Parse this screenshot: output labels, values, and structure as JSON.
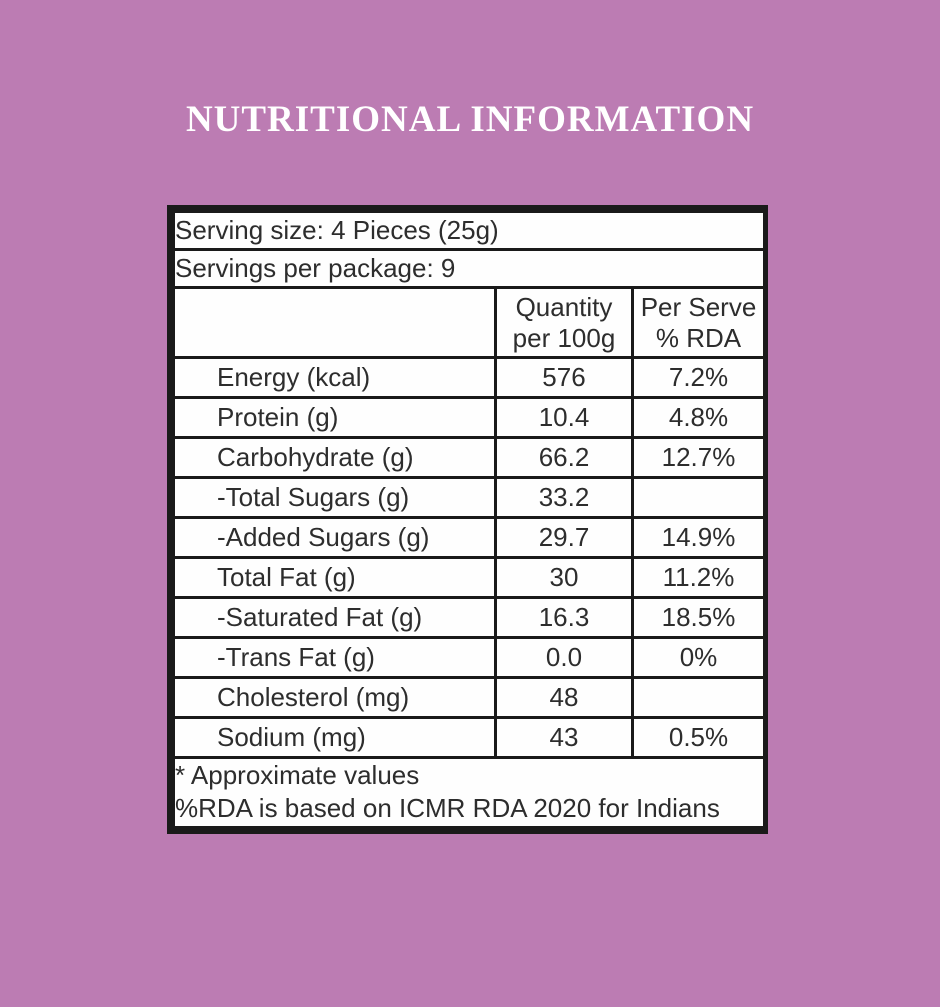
{
  "page": {
    "title": "NUTRITIONAL INFORMATION"
  },
  "colors": {
    "background": "#bc7cb3",
    "panel_background": "#fefefe",
    "border": "#1a1a1a",
    "text": "#2d2d2d",
    "title_text": "#ffffff"
  },
  "table": {
    "serving_size": "Serving size: 4 Pieces (25g)",
    "servings_per_package": "Servings per package: 9",
    "columns": {
      "quantity_line1": "Quantity",
      "quantity_line2": "per 100g",
      "per_serve_line1": "Per Serve",
      "per_serve_line2": "% RDA"
    },
    "rows": [
      {
        "label": "Energy (kcal)",
        "quantity": "576",
        "rda": "7.2%"
      },
      {
        "label": "Protein (g)",
        "quantity": "10.4",
        "rda": "4.8%"
      },
      {
        "label": "Carbohydrate (g)",
        "quantity": "66.2",
        "rda": "12.7%"
      },
      {
        "label": "-Total Sugars (g)",
        "quantity": "33.2",
        "rda": ""
      },
      {
        "label": "-Added Sugars (g)",
        "quantity": "29.7",
        "rda": "14.9%"
      },
      {
        "label": "Total Fat (g)",
        "quantity": "30",
        "rda": "11.2%"
      },
      {
        "label": "-Saturated Fat (g)",
        "quantity": "16.3",
        "rda": "18.5%"
      },
      {
        "label": "-Trans Fat (g)",
        "quantity": "0.0",
        "rda": "0%"
      },
      {
        "label": "Cholesterol (mg)",
        "quantity": "48",
        "rda": ""
      },
      {
        "label": "Sodium (mg)",
        "quantity": "43",
        "rda": "0.5%"
      }
    ],
    "footnotes": [
      "* Approximate values",
      "%RDA is based on ICMR RDA 2020 for Indians"
    ]
  }
}
